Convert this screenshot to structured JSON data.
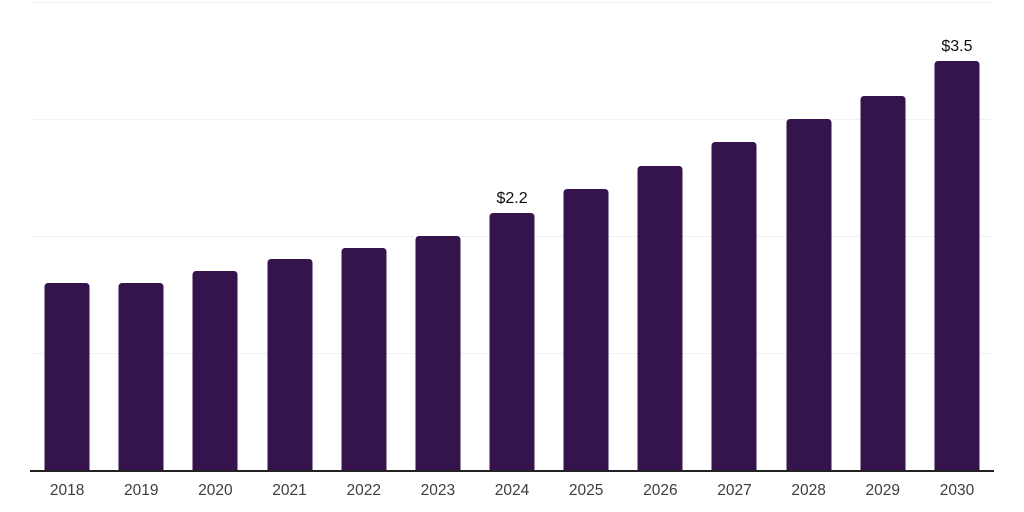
{
  "chart_data": {
    "type": "bar",
    "title": "",
    "xlabel": "",
    "ylabel": "",
    "categories": [
      "2018",
      "2019",
      "2020",
      "2021",
      "2022",
      "2023",
      "2024",
      "2025",
      "2026",
      "2027",
      "2028",
      "2029",
      "2030"
    ],
    "values": [
      1.6,
      1.6,
      1.7,
      1.8,
      1.9,
      2.0,
      2.2,
      2.4,
      2.6,
      2.8,
      3.0,
      3.2,
      3.5
    ],
    "data_labels": [
      "",
      "",
      "",
      "",
      "",
      "",
      "$2.2",
      "",
      "",
      "",
      "",
      "",
      "$3.5"
    ],
    "ylim": [
      0,
      4.0
    ],
    "gridlines": [
      1.0,
      2.0,
      3.0,
      4.0
    ],
    "grid": "horizontal",
    "legend": "none",
    "bar_color": "#35134c",
    "axis_line_color": "#222222",
    "gridline_color": "#f1f1f2",
    "tick_label_color": "#3d3d3d",
    "data_label_color": "#0d0d0d"
  }
}
